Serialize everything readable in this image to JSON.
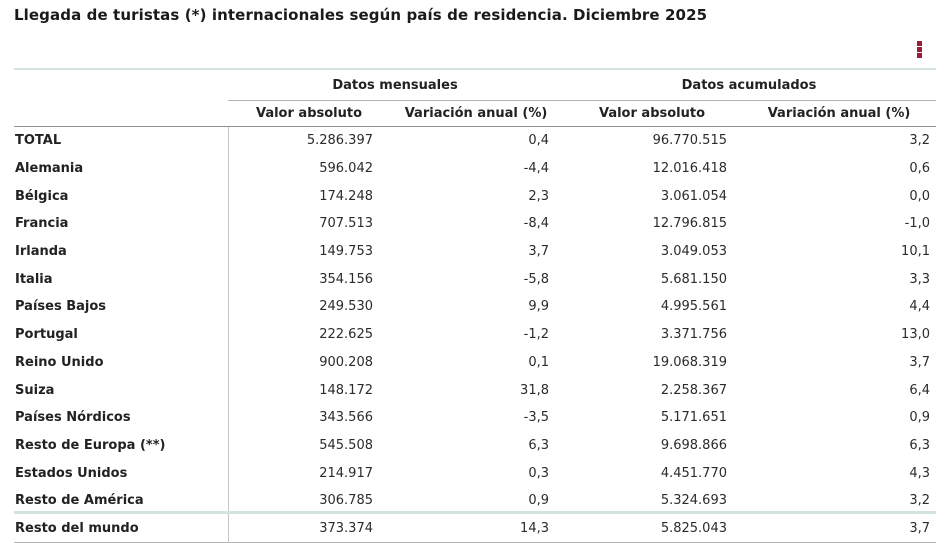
{
  "colors": {
    "accent": "#9b1b3c",
    "teal_line": "#d4e3e1",
    "header_line": "#8f8f8f",
    "divider": "#c6c6c6",
    "text": "#262626"
  },
  "toolbar": {
    "menu_icon": "kebab-menu"
  },
  "chart_data": {
    "type": "table",
    "title": "Llegada de turistas (*) internacionales según país de residencia. Diciembre 2025",
    "column_groups": [
      {
        "label": "Datos mensuales",
        "span": 2
      },
      {
        "label": "Datos acumulados",
        "span": 2
      }
    ],
    "sub_headers": [
      "Valor absoluto",
      "Variación anual (%)",
      "Valor absoluto",
      "Variación anual (%)"
    ],
    "number_format": "es-ES (punto miles, coma decimal)",
    "rows": [
      {
        "label": "TOTAL",
        "values": [
          "5.286.397",
          "0,4",
          "96.770.515",
          "3,2"
        ]
      },
      {
        "label": "Alemania",
        "values": [
          "596.042",
          "-4,4",
          "12.016.418",
          "0,6"
        ]
      },
      {
        "label": "Bélgica",
        "values": [
          "174.248",
          "2,3",
          "3.061.054",
          "0,0"
        ]
      },
      {
        "label": "Francia",
        "values": [
          "707.513",
          "-8,4",
          "12.796.815",
          "-1,0"
        ]
      },
      {
        "label": "Irlanda",
        "values": [
          "149.753",
          "3,7",
          "3.049.053",
          "10,1"
        ]
      },
      {
        "label": "Italia",
        "values": [
          "354.156",
          "-5,8",
          "5.681.150",
          "3,3"
        ]
      },
      {
        "label": "Países Bajos",
        "values": [
          "249.530",
          "9,9",
          "4.995.561",
          "4,4"
        ]
      },
      {
        "label": "Portugal",
        "values": [
          "222.625",
          "-1,2",
          "3.371.756",
          "13,0"
        ]
      },
      {
        "label": "Reino Unido",
        "values": [
          "900.208",
          "0,1",
          "19.068.319",
          "3,7"
        ]
      },
      {
        "label": "Suiza",
        "values": [
          "148.172",
          "31,8",
          "2.258.367",
          "6,4"
        ]
      },
      {
        "label": "Países Nórdicos",
        "values": [
          "343.566",
          "-3,5",
          "5.171.651",
          "0,9"
        ]
      },
      {
        "label": "Resto de Europa (**)",
        "values": [
          "545.508",
          "6,3",
          "9.698.866",
          "6,3"
        ]
      },
      {
        "label": "Estados Unidos",
        "values": [
          "214.917",
          "0,3",
          "4.451.770",
          "4,3"
        ]
      },
      {
        "label": "Resto de América",
        "values": [
          "306.785",
          "0,9",
          "5.324.693",
          "3,2"
        ]
      },
      {
        "label": "Resto del mundo",
        "values": [
          "373.374",
          "14,3",
          "5.825.043",
          "3,7"
        ]
      }
    ]
  }
}
